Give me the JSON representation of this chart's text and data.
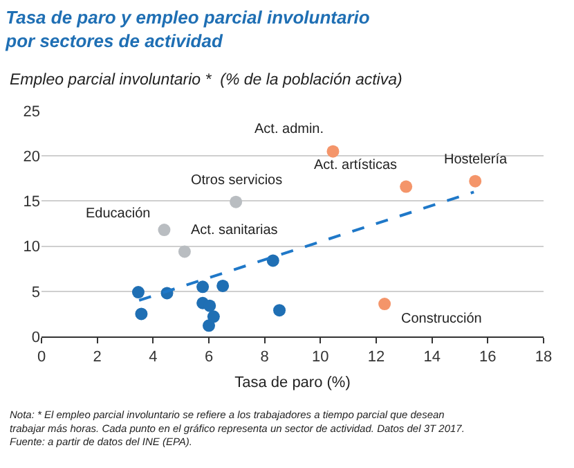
{
  "chart_data": {
    "type": "scatter",
    "title": "Tasa de paro y empleo parcial involuntario por sectores de actividad",
    "subtitle": "Empleo parcial involuntario *  (% de la población activa)",
    "xlabel": "Tasa de paro (%)",
    "series": [
      {
        "color": "#1f6fb4",
        "x": [
          3.47,
          3.58,
          4.5,
          5.78,
          5.78,
          6.03,
          6.17,
          6.0,
          6.5,
          8.3,
          8.53
        ],
        "values": [
          4.9,
          2.5,
          4.8,
          5.5,
          3.7,
          3.4,
          2.2,
          1.2,
          5.6,
          8.4,
          2.9
        ]
      },
      {
        "color": "#b9bdc1",
        "x": [
          4.4,
          5.13,
          6.97
        ],
        "values": [
          11.8,
          9.4,
          14.9
        ]
      },
      {
        "color": "#f4956a",
        "x": [
          10.45,
          13.07,
          15.55,
          12.3
        ],
        "values": [
          20.5,
          16.6,
          17.2,
          3.6
        ]
      },
      {
        "type": "line",
        "color": "#1f78c8",
        "line_style": "dashed",
        "marker": "none",
        "x": [
          3.5,
          15.5
        ],
        "values": [
          4.0,
          16.0
        ]
      }
    ],
    "marker": "circle",
    "xlim": [
      0,
      18
    ],
    "xticks": [
      0,
      2,
      4,
      6,
      8,
      10,
      12,
      14,
      16,
      18
    ],
    "ylim": [
      0,
      25
    ],
    "yticks": [
      0,
      5,
      10,
      15,
      20,
      25
    ],
    "grid": "y",
    "annotations": [
      {
        "text": "Act. admin.",
        "x": 10.45,
        "y": 20.5
      },
      {
        "text": "Act. artísticas",
        "x": 13.07,
        "y": 16.6
      },
      {
        "text": "Hostelería",
        "x": 15.55,
        "y": 17.2
      },
      {
        "text": "Otros servicios",
        "x": 6.97,
        "y": 14.9
      },
      {
        "text": "Educación",
        "x": 4.4,
        "y": 11.8
      },
      {
        "text": "Act. sanitarias",
        "x": 5.13,
        "y": 9.4
      },
      {
        "text": "Construcción",
        "x": 12.3,
        "y": 3.6
      },
      "Nota: * El empleo parcial involuntario se refiere a los trabajadores a tiempo parcial que desean trabajar más horas. Cada punto en el gráfico representa un sector de actividad. Datos del 3T 2017.",
      "Fuente: a partir de datos del INE (EPA)."
    ]
  }
}
